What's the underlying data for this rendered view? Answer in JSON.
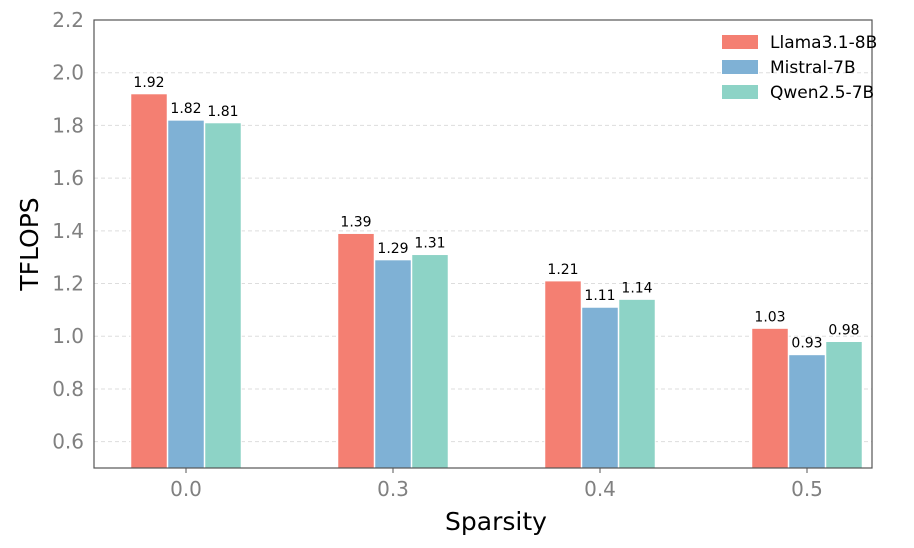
{
  "chart_data": {
    "type": "bar",
    "categories": [
      "0.0",
      "0.3",
      "0.4",
      "0.5"
    ],
    "series": [
      {
        "name": "Llama3.1-8B",
        "color": "#f47f72",
        "values": [
          1.92,
          1.39,
          1.21,
          1.03
        ],
        "labels": [
          "1.92",
          "1.39",
          "1.21",
          "1.03"
        ]
      },
      {
        "name": "Mistral-7B",
        "color": "#7fb1d5",
        "values": [
          1.82,
          1.29,
          1.11,
          0.93
        ],
        "labels": [
          "1.82",
          "1.29",
          "1.11",
          "0.93"
        ]
      },
      {
        "name": "Qwen2.5-7B",
        "color": "#8dd3c6",
        "values": [
          1.81,
          1.31,
          1.14,
          0.98
        ],
        "labels": [
          "1.81",
          "1.31",
          "1.14",
          "0.98"
        ]
      }
    ],
    "xlabel": "Sparsity",
    "ylabel": "TFLOPS",
    "ylim": [
      0.5,
      2.2
    ],
    "yticks": [
      "0.6",
      "0.8",
      "1.0",
      "1.2",
      "1.4",
      "1.6",
      "1.8",
      "2.0",
      "2.2"
    ],
    "grid": "horizontal-dashed",
    "legend": "top-right"
  }
}
